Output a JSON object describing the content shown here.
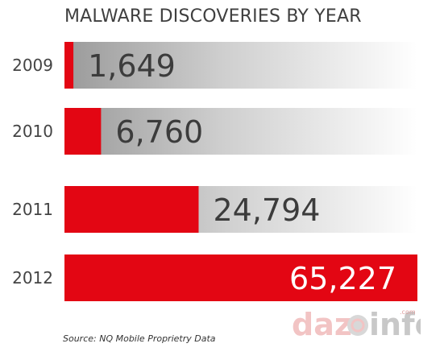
{
  "chart_data": {
    "type": "bar",
    "orientation": "horizontal",
    "title": "MALWARE DISCOVERIES BY YEAR",
    "categories": [
      "2009",
      "2010",
      "2011",
      "2012"
    ],
    "values": [
      1649,
      6760,
      24794,
      65227
    ],
    "value_labels": [
      "1,649",
      "6,760",
      "24,794",
      "65,227"
    ],
    "xlim": [
      0,
      65227
    ],
    "grid": false,
    "legend": "none",
    "colors": {
      "bar": "#e30613",
      "track_dark": "#9a9a9a",
      "track_light": "#ffffff",
      "value_text_dark": "#3c3c3c",
      "value_text_light": "#ffffff"
    }
  },
  "source": "Source: NQ Mobile Proprietry Data",
  "logo": {
    "text_left": "daz",
    "text_right": "info",
    "superscript": ".com"
  }
}
